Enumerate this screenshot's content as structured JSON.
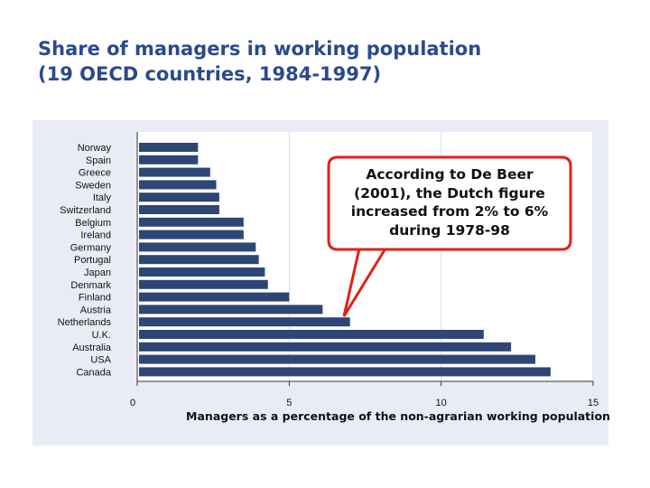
{
  "title": {
    "line1": "Share of managers in working population",
    "line2": "(19 OECD countries, 1984-1997)"
  },
  "callout": {
    "text": "According to De Beer\n(2001), the Dutch figure\nincreased from 2% to 6%\nduring 1978-98"
  },
  "colors": {
    "bar": "#2e4676",
    "title": "#2b4a8c",
    "panel": "#e9ecf4",
    "callout_border": "#e0201a"
  },
  "chart_data": {
    "type": "bar",
    "orientation": "horizontal",
    "categories": [
      "Norway",
      "Spain",
      "Greece",
      "Sweden",
      "Italy",
      "Switzerland",
      "Belgium",
      "Ireland",
      "Germany",
      "Portugal",
      "Japan",
      "Denmark",
      "Finland",
      "Austria",
      "Netherlands",
      "U.K.",
      "Australia",
      "USA",
      "Canada"
    ],
    "values": [
      2.0,
      2.0,
      2.4,
      2.6,
      2.7,
      2.7,
      3.5,
      3.5,
      3.9,
      4.0,
      4.2,
      4.3,
      5.0,
      6.1,
      7.0,
      11.4,
      12.3,
      13.1,
      13.6
    ],
    "xlabel": "Managers as a percentage of the non-agrarian working population",
    "xlim": [
      0,
      15
    ],
    "xticks": [
      0,
      5,
      10,
      15
    ],
    "grid": true
  }
}
